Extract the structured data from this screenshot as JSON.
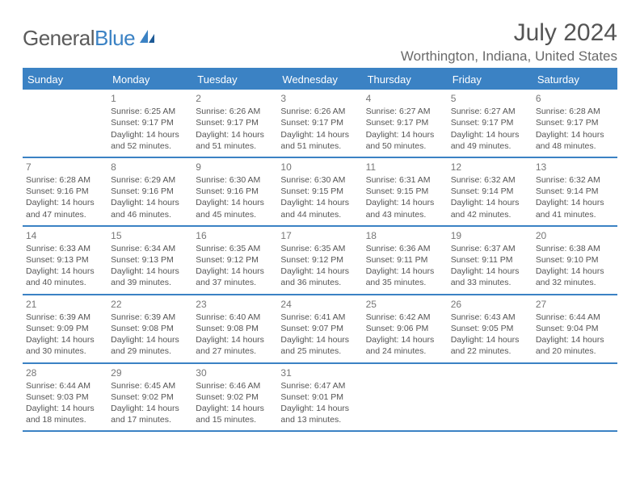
{
  "brand": {
    "part1": "General",
    "part2": "Blue"
  },
  "title": "July 2024",
  "location": "Worthington, Indiana, United States",
  "colors": {
    "accent": "#3b82c4",
    "text": "#555555",
    "muted": "#777777",
    "bg": "#ffffff"
  },
  "fonts": {
    "title_size": 30,
    "location_size": 17,
    "header_size": 13,
    "cell_size": 10.5
  },
  "dayHeaders": [
    "Sunday",
    "Monday",
    "Tuesday",
    "Wednesday",
    "Thursday",
    "Friday",
    "Saturday"
  ],
  "weeks": [
    [
      null,
      {
        "n": "1",
        "sr": "Sunrise: 6:25 AM",
        "ss": "Sunset: 9:17 PM",
        "d1": "Daylight: 14 hours",
        "d2": "and 52 minutes."
      },
      {
        "n": "2",
        "sr": "Sunrise: 6:26 AM",
        "ss": "Sunset: 9:17 PM",
        "d1": "Daylight: 14 hours",
        "d2": "and 51 minutes."
      },
      {
        "n": "3",
        "sr": "Sunrise: 6:26 AM",
        "ss": "Sunset: 9:17 PM",
        "d1": "Daylight: 14 hours",
        "d2": "and 51 minutes."
      },
      {
        "n": "4",
        "sr": "Sunrise: 6:27 AM",
        "ss": "Sunset: 9:17 PM",
        "d1": "Daylight: 14 hours",
        "d2": "and 50 minutes."
      },
      {
        "n": "5",
        "sr": "Sunrise: 6:27 AM",
        "ss": "Sunset: 9:17 PM",
        "d1": "Daylight: 14 hours",
        "d2": "and 49 minutes."
      },
      {
        "n": "6",
        "sr": "Sunrise: 6:28 AM",
        "ss": "Sunset: 9:17 PM",
        "d1": "Daylight: 14 hours",
        "d2": "and 48 minutes."
      }
    ],
    [
      {
        "n": "7",
        "sr": "Sunrise: 6:28 AM",
        "ss": "Sunset: 9:16 PM",
        "d1": "Daylight: 14 hours",
        "d2": "and 47 minutes."
      },
      {
        "n": "8",
        "sr": "Sunrise: 6:29 AM",
        "ss": "Sunset: 9:16 PM",
        "d1": "Daylight: 14 hours",
        "d2": "and 46 minutes."
      },
      {
        "n": "9",
        "sr": "Sunrise: 6:30 AM",
        "ss": "Sunset: 9:16 PM",
        "d1": "Daylight: 14 hours",
        "d2": "and 45 minutes."
      },
      {
        "n": "10",
        "sr": "Sunrise: 6:30 AM",
        "ss": "Sunset: 9:15 PM",
        "d1": "Daylight: 14 hours",
        "d2": "and 44 minutes."
      },
      {
        "n": "11",
        "sr": "Sunrise: 6:31 AM",
        "ss": "Sunset: 9:15 PM",
        "d1": "Daylight: 14 hours",
        "d2": "and 43 minutes."
      },
      {
        "n": "12",
        "sr": "Sunrise: 6:32 AM",
        "ss": "Sunset: 9:14 PM",
        "d1": "Daylight: 14 hours",
        "d2": "and 42 minutes."
      },
      {
        "n": "13",
        "sr": "Sunrise: 6:32 AM",
        "ss": "Sunset: 9:14 PM",
        "d1": "Daylight: 14 hours",
        "d2": "and 41 minutes."
      }
    ],
    [
      {
        "n": "14",
        "sr": "Sunrise: 6:33 AM",
        "ss": "Sunset: 9:13 PM",
        "d1": "Daylight: 14 hours",
        "d2": "and 40 minutes."
      },
      {
        "n": "15",
        "sr": "Sunrise: 6:34 AM",
        "ss": "Sunset: 9:13 PM",
        "d1": "Daylight: 14 hours",
        "d2": "and 39 minutes."
      },
      {
        "n": "16",
        "sr": "Sunrise: 6:35 AM",
        "ss": "Sunset: 9:12 PM",
        "d1": "Daylight: 14 hours",
        "d2": "and 37 minutes."
      },
      {
        "n": "17",
        "sr": "Sunrise: 6:35 AM",
        "ss": "Sunset: 9:12 PM",
        "d1": "Daylight: 14 hours",
        "d2": "and 36 minutes."
      },
      {
        "n": "18",
        "sr": "Sunrise: 6:36 AM",
        "ss": "Sunset: 9:11 PM",
        "d1": "Daylight: 14 hours",
        "d2": "and 35 minutes."
      },
      {
        "n": "19",
        "sr": "Sunrise: 6:37 AM",
        "ss": "Sunset: 9:11 PM",
        "d1": "Daylight: 14 hours",
        "d2": "and 33 minutes."
      },
      {
        "n": "20",
        "sr": "Sunrise: 6:38 AM",
        "ss": "Sunset: 9:10 PM",
        "d1": "Daylight: 14 hours",
        "d2": "and 32 minutes."
      }
    ],
    [
      {
        "n": "21",
        "sr": "Sunrise: 6:39 AM",
        "ss": "Sunset: 9:09 PM",
        "d1": "Daylight: 14 hours",
        "d2": "and 30 minutes."
      },
      {
        "n": "22",
        "sr": "Sunrise: 6:39 AM",
        "ss": "Sunset: 9:08 PM",
        "d1": "Daylight: 14 hours",
        "d2": "and 29 minutes."
      },
      {
        "n": "23",
        "sr": "Sunrise: 6:40 AM",
        "ss": "Sunset: 9:08 PM",
        "d1": "Daylight: 14 hours",
        "d2": "and 27 minutes."
      },
      {
        "n": "24",
        "sr": "Sunrise: 6:41 AM",
        "ss": "Sunset: 9:07 PM",
        "d1": "Daylight: 14 hours",
        "d2": "and 25 minutes."
      },
      {
        "n": "25",
        "sr": "Sunrise: 6:42 AM",
        "ss": "Sunset: 9:06 PM",
        "d1": "Daylight: 14 hours",
        "d2": "and 24 minutes."
      },
      {
        "n": "26",
        "sr": "Sunrise: 6:43 AM",
        "ss": "Sunset: 9:05 PM",
        "d1": "Daylight: 14 hours",
        "d2": "and 22 minutes."
      },
      {
        "n": "27",
        "sr": "Sunrise: 6:44 AM",
        "ss": "Sunset: 9:04 PM",
        "d1": "Daylight: 14 hours",
        "d2": "and 20 minutes."
      }
    ],
    [
      {
        "n": "28",
        "sr": "Sunrise: 6:44 AM",
        "ss": "Sunset: 9:03 PM",
        "d1": "Daylight: 14 hours",
        "d2": "and 18 minutes."
      },
      {
        "n": "29",
        "sr": "Sunrise: 6:45 AM",
        "ss": "Sunset: 9:02 PM",
        "d1": "Daylight: 14 hours",
        "d2": "and 17 minutes."
      },
      {
        "n": "30",
        "sr": "Sunrise: 6:46 AM",
        "ss": "Sunset: 9:02 PM",
        "d1": "Daylight: 14 hours",
        "d2": "and 15 minutes."
      },
      {
        "n": "31",
        "sr": "Sunrise: 6:47 AM",
        "ss": "Sunset: 9:01 PM",
        "d1": "Daylight: 14 hours",
        "d2": "and 13 minutes."
      },
      null,
      null,
      null
    ]
  ]
}
